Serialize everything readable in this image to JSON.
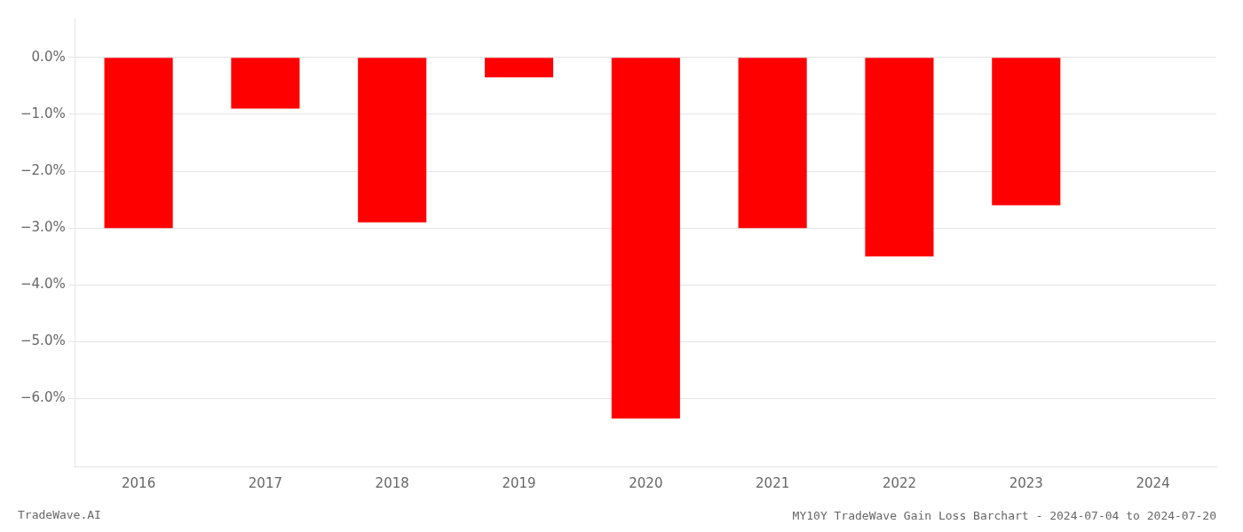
{
  "chart_data": {
    "type": "bar",
    "title": "MY10Y TradeWave Gain Loss Barchart - 2024-07-04 to 2024-07-20",
    "annotations": [
      "TradeWave.AI"
    ],
    "categories": [
      "2016",
      "2017",
      "2018",
      "2019",
      "2020",
      "2021",
      "2022",
      "2023",
      "2024"
    ],
    "values": [
      -0.03,
      -0.009,
      -0.029,
      -0.0035,
      -0.0635,
      -0.03,
      -0.035,
      -0.026,
      0.0
    ],
    "color": "#ff0000",
    "ylim": [
      -0.072,
      0.007
    ],
    "yticks": [
      {
        "value": 0.0,
        "label": "0.0%"
      },
      {
        "value": -0.01,
        "label": "−1.0%"
      },
      {
        "value": -0.02,
        "label": "−2.0%"
      },
      {
        "value": -0.03,
        "label": "−3.0%"
      },
      {
        "value": -0.04,
        "label": "−4.0%"
      },
      {
        "value": -0.05,
        "label": "−5.0%"
      },
      {
        "value": -0.06,
        "label": "−6.0%"
      }
    ],
    "grid": true
  }
}
